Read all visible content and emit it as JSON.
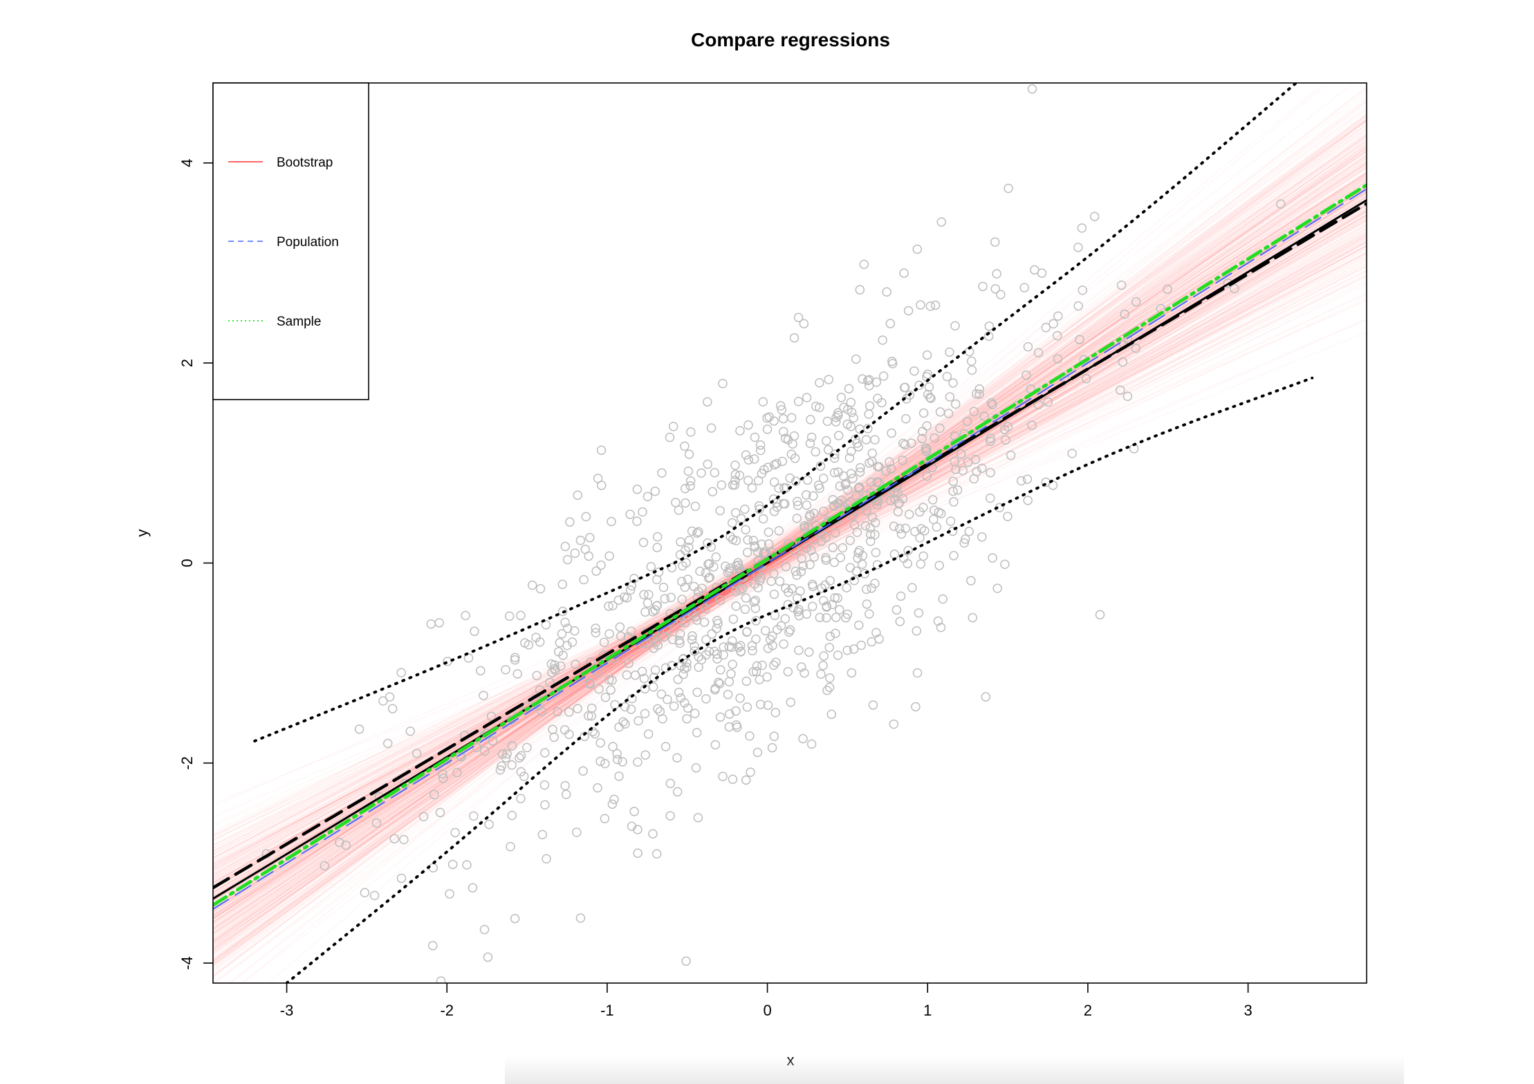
{
  "chart_data": {
    "type": "scatter",
    "title": "Compare regressions",
    "xlabel": "x",
    "ylabel": "y",
    "xlim": [
      -3.46,
      3.74
    ],
    "ylim": [
      -4.2,
      4.8
    ],
    "x_ticks": [
      -3,
      -2,
      -1,
      0,
      1,
      2,
      3
    ],
    "y_ticks": [
      -4,
      -2,
      0,
      2,
      4
    ],
    "x_tick_labels": [
      "-3",
      "-2",
      "-1",
      "0",
      "1",
      "2",
      "3"
    ],
    "y_tick_labels": [
      "-4",
      "-2",
      "0",
      "2",
      "4"
    ],
    "grid": false,
    "legend": {
      "placement": "top-left",
      "entries": [
        {
          "label": "Bootstrap",
          "color": "#ff3333",
          "style": "solid"
        },
        {
          "label": "Population",
          "color": "#4466ff",
          "style": "dashed"
        },
        {
          "label": "Sample",
          "color": "#22dd22",
          "style": "dotted"
        }
      ]
    },
    "points": {
      "n": 1000,
      "color": "#bdbdbd",
      "description_free": true,
      "x_mean": 0,
      "x_sd": 1,
      "slope": 1,
      "intercept": 0,
      "residual_sd": 0.9
    },
    "bootstrap_lines": {
      "count": 400,
      "color": "#ff3b3b",
      "center_x": -0.3,
      "center_y": -0.3,
      "slope_mean": 1.0,
      "slope_sd": 0.12
    },
    "lines": [
      {
        "name": "Population",
        "slope": 1.0,
        "intercept": 0.0,
        "color": "#4466ff",
        "style": "dashed"
      },
      {
        "name": "Sample",
        "slope": 1.0,
        "intercept": 0.04,
        "color": "#22dd22",
        "style": "dotdash"
      },
      {
        "name": "fit",
        "slope": 0.97,
        "intercept": 0.0,
        "color": "#000000",
        "style": "solid"
      },
      {
        "name": "fit-dashed",
        "slope": 0.95,
        "intercept": 0.04,
        "color": "#000000",
        "style": "dashed"
      }
    ],
    "bands": {
      "color": "#000000",
      "style": "dotted",
      "upper": [
        [
          -3.2,
          -1.78
        ],
        [
          -2.0,
          -1.0
        ],
        [
          -1.0,
          -0.3
        ],
        [
          -0.3,
          0.2
        ],
        [
          0.5,
          1.2
        ],
        [
          1.3,
          2.2
        ],
        [
          2.2,
          3.3
        ],
        [
          3.3,
          4.8
        ]
      ],
      "lower": [
        [
          -3.0,
          -4.2
        ],
        [
          -2.0,
          -2.9
        ],
        [
          -1.0,
          -1.5
        ],
        [
          -0.3,
          -0.7
        ],
        [
          0.5,
          -0.2
        ],
        [
          1.3,
          0.45
        ],
        [
          2.2,
          1.15
        ],
        [
          3.4,
          1.85
        ]
      ]
    }
  }
}
